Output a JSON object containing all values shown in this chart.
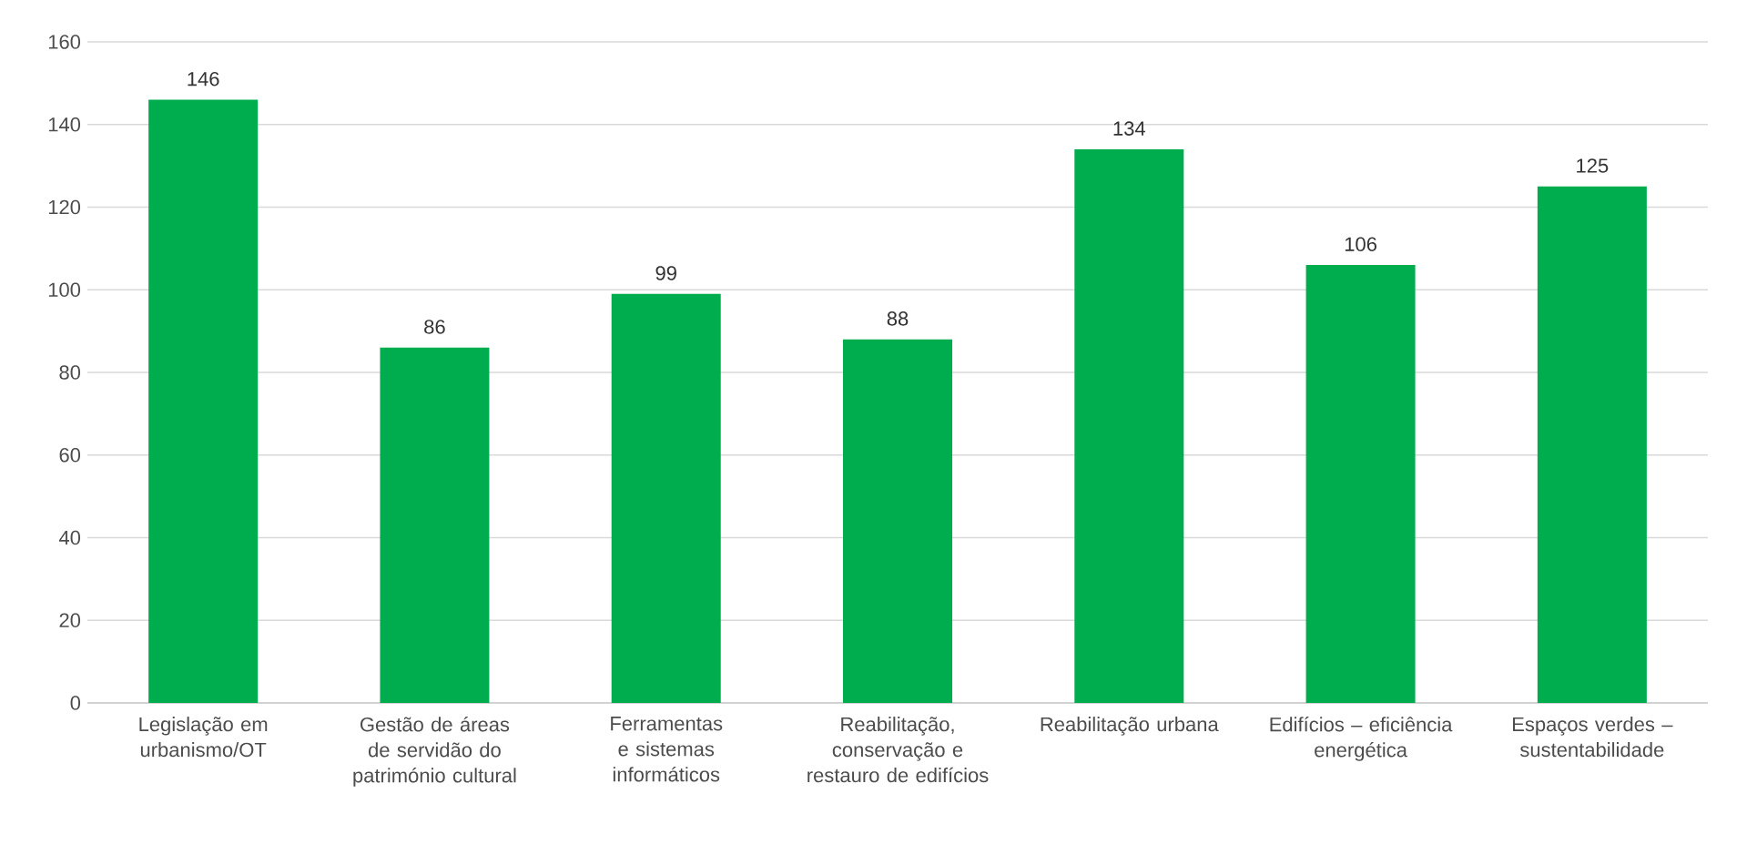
{
  "chart_data": {
    "type": "bar",
    "categories": [
      "Legislação em urbanismo/OT",
      "Gestão de áreas de servidão do património cultural",
      "Ferramentas e sistemas informáticos",
      "Reabilitação, conservação e restauro de edifícios",
      "Reabilitação urbana",
      "Edifícios – eficiência energética",
      "Espaços verdes – sustentabilidade"
    ],
    "values": [
      146,
      86,
      99,
      88,
      134,
      106,
      125
    ],
    "color": "#00ad4e",
    "ylim": [
      0,
      160
    ],
    "yticks": [
      0,
      20,
      40,
      60,
      80,
      100,
      120,
      140,
      160
    ],
    "grid": "y",
    "data_labels": true
  }
}
